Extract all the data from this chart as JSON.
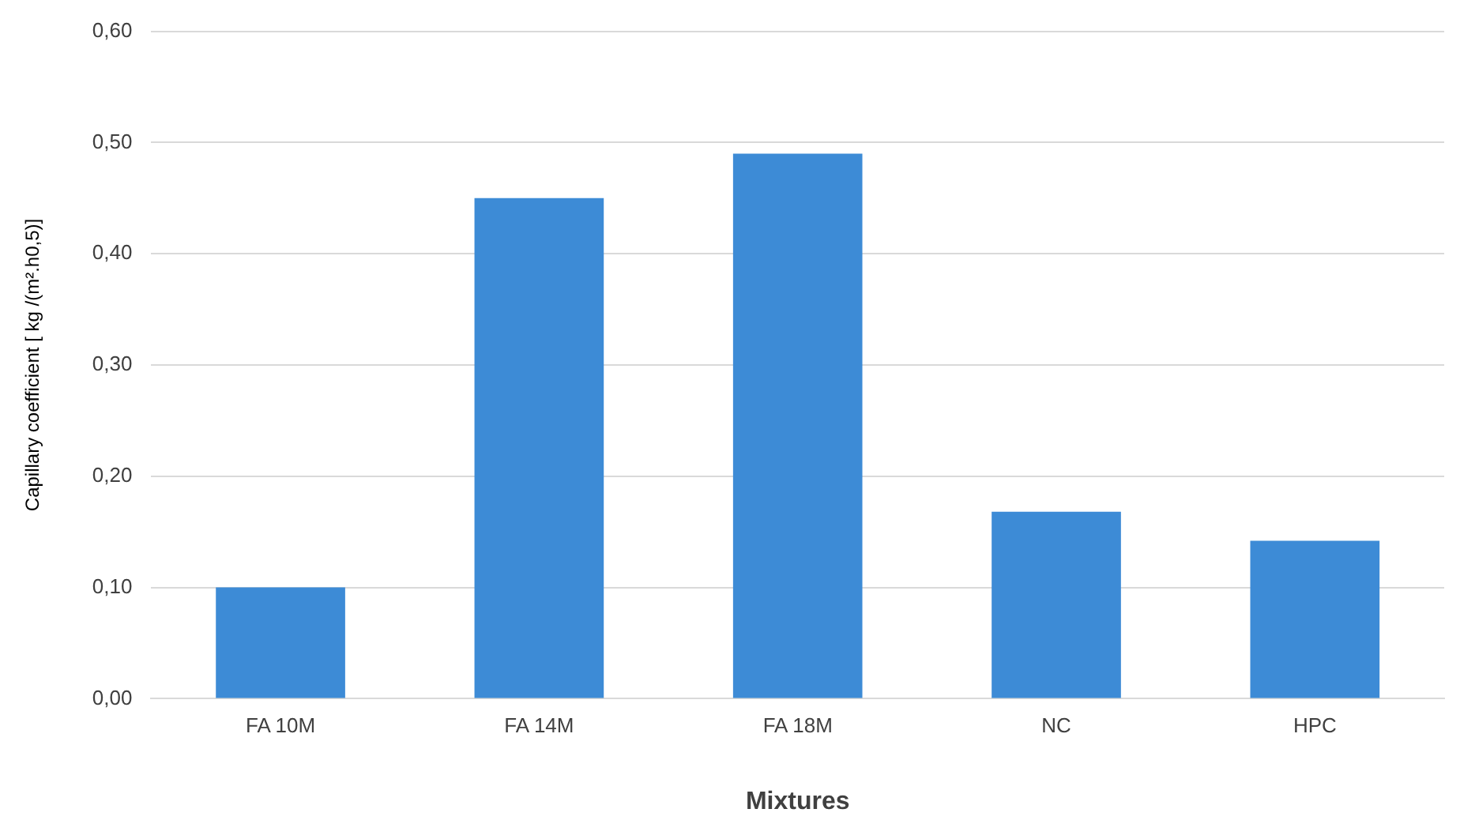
{
  "chart_data": {
    "type": "bar",
    "xlabel": "Mixtures",
    "ylabel": "Capillary coefficient [ kg /(m².h0,5)]",
    "categories": [
      "FA 10M",
      "FA 14M",
      "FA 18M",
      "NC",
      "HPC"
    ],
    "values": [
      0.1,
      0.45,
      0.49,
      0.168,
      0.142
    ],
    "color": "#3d8bd6",
    "ylim": [
      0,
      0.6
    ],
    "yticks": [
      {
        "value": 0,
        "label": "0,00"
      },
      {
        "value": 0.1,
        "label": "0,10"
      },
      {
        "value": 0.2,
        "label": "0,20"
      },
      {
        "value": 0.3,
        "label": "0,30"
      },
      {
        "value": 0.4,
        "label": "0,40"
      },
      {
        "value": 0.5,
        "label": "0,50"
      },
      {
        "value": 0.6,
        "label": "0,60"
      }
    ],
    "grid": "y",
    "legend": false
  }
}
